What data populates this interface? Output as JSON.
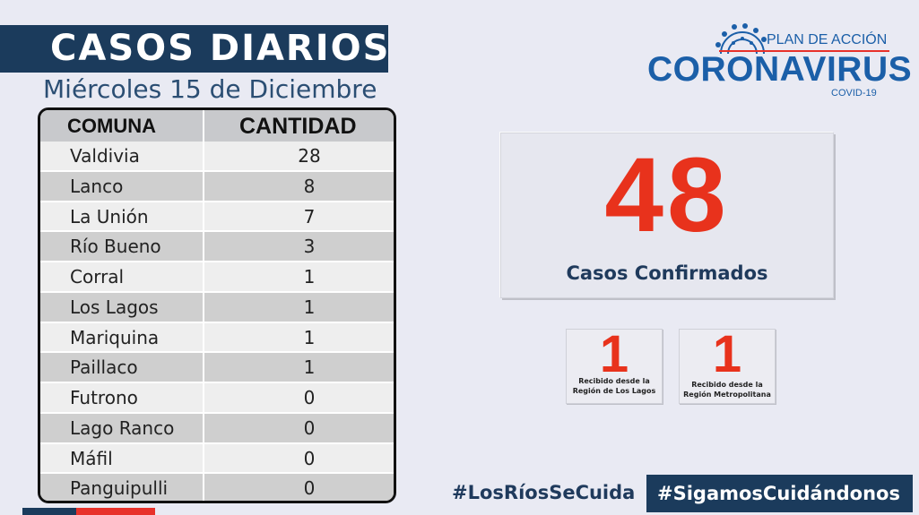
{
  "header": {
    "title": "CASOS DIARIOS",
    "date": "Miércoles 15 de Diciembre"
  },
  "logo": {
    "tagline": "PLAN DE ACCIÓN",
    "brand": "CORONAVIRUS",
    "subbrand": "COVID-19"
  },
  "table": {
    "headers": [
      "COMUNA",
      "CANTIDAD"
    ],
    "rows": [
      {
        "comuna": "Valdivia",
        "cantidad": "28"
      },
      {
        "comuna": "Lanco",
        "cantidad": "8"
      },
      {
        "comuna": "La Unión",
        "cantidad": "7"
      },
      {
        "comuna": "Río Bueno",
        "cantidad": "3"
      },
      {
        "comuna": "Corral",
        "cantidad": "1"
      },
      {
        "comuna": "Los Lagos",
        "cantidad": "1"
      },
      {
        "comuna": "Mariquina",
        "cantidad": "1"
      },
      {
        "comuna": "Paillaco",
        "cantidad": "1"
      },
      {
        "comuna": "Futrono",
        "cantidad": "0"
      },
      {
        "comuna": "Lago Ranco",
        "cantidad": "0"
      },
      {
        "comuna": "Máfil",
        "cantidad": "0"
      },
      {
        "comuna": "Panguipulli",
        "cantidad": "0"
      }
    ]
  },
  "summary": {
    "total": "48",
    "total_label": "Casos Confirmados",
    "received": [
      {
        "value": "1",
        "line1": "Recibido desde la",
        "line2": "Región de Los Lagos"
      },
      {
        "value": "1",
        "line1": "Recibido desde la",
        "line2": "Región Metropolitana"
      }
    ]
  },
  "footer": {
    "hashtag1": "#LosRíosSeCuida",
    "hashtag2": "#SigamosCuidándonos"
  },
  "colors": {
    "navy": "#1b3b5c",
    "brand_blue": "#1b5fa8",
    "accent_red": "#e8321c"
  }
}
